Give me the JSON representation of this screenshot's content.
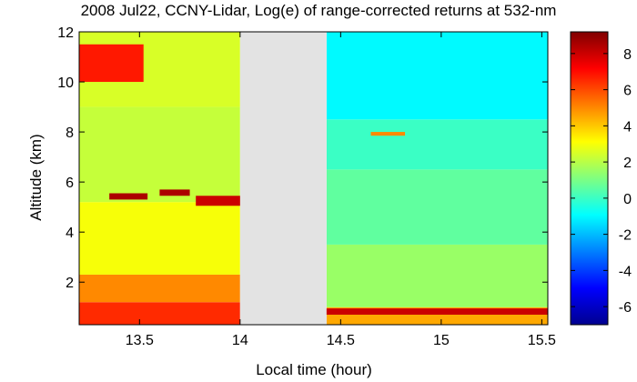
{
  "chart_data": {
    "type": "heatmap",
    "title": "2008 Jul22, CCNY-Lidar, Log(e) of range-corrected returns at 532-nm",
    "xlabel": "Local time (hour)",
    "ylabel": "Altitude (km)",
    "x_range": [
      13.2,
      15.53
    ],
    "y_range": [
      0.3,
      12
    ],
    "x_ticks": [
      13.5,
      14,
      14.5,
      15,
      15.5
    ],
    "x_tick_labels": [
      "13.5",
      "14",
      "14.5",
      "15",
      "15.5"
    ],
    "y_ticks": [
      2,
      4,
      6,
      8,
      10,
      12
    ],
    "y_tick_labels": [
      "2",
      "4",
      "6",
      "8",
      "10",
      "12"
    ],
    "colorbar": {
      "colormap": "jet",
      "range": [
        -7,
        9.2
      ],
      "ticks": [
        8,
        6,
        4,
        2,
        0,
        -2,
        -4,
        -6
      ],
      "tick_labels": [
        "8",
        "6",
        "4",
        "2",
        "0",
        "-2",
        "-4",
        "-6"
      ]
    },
    "no_data_gap": {
      "x_start": 14.0,
      "x_end": 14.43,
      "color": "#e3e3e3"
    },
    "grid": false,
    "legend": "none",
    "segments": [
      {
        "x_start": 13.2,
        "x_end": 14.0,
        "layers": [
          {
            "y_min": 0.3,
            "y_max": 1.2,
            "value": 6.5
          },
          {
            "y_min": 1.2,
            "y_max": 2.3,
            "value": 5.0
          },
          {
            "y_min": 2.3,
            "y_max": 5.2,
            "value": 3.0
          },
          {
            "y_min": 5.2,
            "y_max": 9.0,
            "value": 2.2
          },
          {
            "y_min": 9.0,
            "y_max": 12.0,
            "value": 2.5
          }
        ]
      },
      {
        "x_start": 14.43,
        "x_end": 15.53,
        "layers": [
          {
            "y_min": 0.3,
            "y_max": 1.0,
            "value": 4.5
          },
          {
            "y_min": 1.0,
            "y_max": 3.5,
            "value": 1.5
          },
          {
            "y_min": 3.5,
            "y_max": 6.5,
            "value": 0.6
          },
          {
            "y_min": 6.5,
            "y_max": 8.5,
            "value": 0.0
          },
          {
            "y_min": 8.5,
            "y_max": 12.0,
            "value": -1.0
          }
        ]
      }
    ],
    "features": [
      {
        "name": "cirrus-cloud",
        "x_start": 13.2,
        "x_end": 13.52,
        "y_min": 10.0,
        "y_max": 11.5,
        "value": 6.8
      },
      {
        "name": "cloud-layer",
        "x_start": 13.35,
        "x_end": 13.54,
        "y_min": 5.3,
        "y_max": 5.55,
        "value": 8.5
      },
      {
        "name": "cloud-layer",
        "x_start": 13.6,
        "x_end": 13.75,
        "y_min": 5.45,
        "y_max": 5.7,
        "value": 8.5
      },
      {
        "name": "cloud-layer",
        "x_start": 13.78,
        "x_end": 14.0,
        "y_min": 5.05,
        "y_max": 5.45,
        "value": 8.0
      },
      {
        "name": "elevated-layer",
        "x_start": 14.65,
        "x_end": 14.82,
        "y_min": 7.85,
        "y_max": 8.0,
        "value": 5.0
      },
      {
        "name": "boundary-layer-top",
        "x_start": 14.43,
        "x_end": 15.53,
        "y_min": 0.7,
        "y_max": 0.95,
        "value": 8.0
      }
    ]
  }
}
